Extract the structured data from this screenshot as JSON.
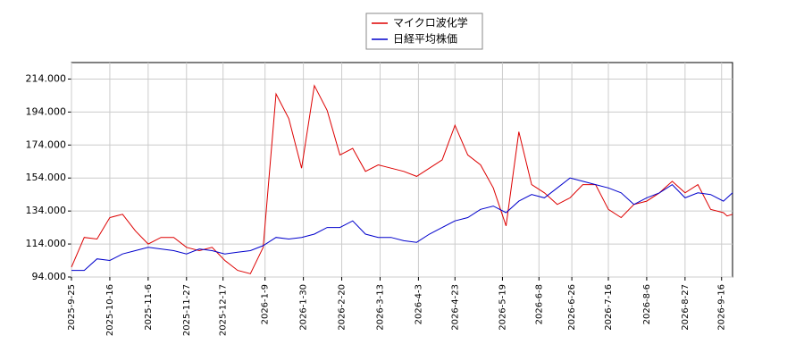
{
  "chart_data": {
    "type": "line",
    "x": [
      "2025-9-25",
      "2025-10-2",
      "2025-10-9",
      "2025-10-16",
      "2025-10-23",
      "2025-10-30",
      "2025-11-6",
      "2025-11-13",
      "2025-11-20",
      "2025-11-27",
      "2025-12-4",
      "2025-12-11",
      "2025-12-18",
      "2025-12-25",
      "2026-1-1",
      "2026-1-8",
      "2026-1-15",
      "2026-1-22",
      "2026-1-29",
      "2026-2-5",
      "2026-2-12",
      "2026-2-19",
      "2026-2-26",
      "2026-3-5",
      "2026-3-12",
      "2026-3-19",
      "2026-3-26",
      "2026-4-2",
      "2026-4-9",
      "2026-4-16",
      "2026-4-23",
      "2026-4-30",
      "2026-5-7",
      "2026-5-14",
      "2026-5-21",
      "2026-5-28",
      "2026-6-4",
      "2026-6-11",
      "2026-6-18",
      "2026-6-25",
      "2026-7-2",
      "2026-7-9",
      "2026-7-16",
      "2026-7-23",
      "2026-7-30",
      "2026-8-6",
      "2026-8-13",
      "2026-8-20",
      "2026-8-27",
      "2026-9-3",
      "2026-9-10",
      "2026-9-17",
      "2026-9-19",
      "2026-9-22"
    ],
    "series": [
      {
        "name": "マイクロ波化学",
        "color": "#dd0000",
        "values": [
          100,
          118,
          117,
          130,
          132,
          122,
          114,
          118,
          118,
          112,
          110,
          112,
          104,
          98,
          96,
          112,
          205,
          190,
          160,
          210,
          195,
          168,
          172,
          158,
          162,
          160,
          158,
          155,
          160,
          165,
          186,
          168,
          162,
          148,
          125,
          182,
          150,
          145,
          138,
          142,
          150,
          150,
          135,
          130,
          138,
          140,
          145,
          152,
          145,
          150,
          135,
          133,
          131,
          132
        ]
      },
      {
        "name": "日経平均株価",
        "color": "#0000cc",
        "values": [
          98,
          98,
          105,
          104,
          108,
          110,
          112,
          111,
          110,
          108,
          111,
          110,
          108,
          109,
          110,
          113,
          118,
          117,
          118,
          120,
          124,
          124,
          128,
          120,
          118,
          118,
          116,
          115,
          120,
          124,
          128,
          130,
          135,
          137,
          133,
          140,
          144,
          142,
          148,
          154,
          152,
          150,
          148,
          145,
          138,
          142,
          145,
          150,
          142,
          145,
          144,
          140,
          142,
          145
        ]
      }
    ],
    "xlim": [
      "2025-9-25",
      "2026-9-22"
    ],
    "xticks": [
      "2025-9-25",
      "2025-10-16",
      "2025-11-6",
      "2025-11-27",
      "2025-12-17",
      "2026-1-9",
      "2026-1-30",
      "2026-2-20",
      "2026-3-13",
      "2026-4-3",
      "2026-4-23",
      "2026-5-19",
      "2026-6-8",
      "2026-6-26",
      "2026-7-16",
      "2026-8-6",
      "2026-8-27",
      "2026-9-16"
    ],
    "ylim": [
      94,
      224
    ],
    "yticks": [
      {
        "value": 94,
        "label": "94.000"
      },
      {
        "value": 114,
        "label": "114.000"
      },
      {
        "value": 134,
        "label": "134.000"
      },
      {
        "value": 154,
        "label": "154.000"
      },
      {
        "value": 174,
        "label": "174.000"
      },
      {
        "value": 194,
        "label": "194.000"
      },
      {
        "value": 214,
        "label": "214.000"
      }
    ],
    "grid": true
  }
}
